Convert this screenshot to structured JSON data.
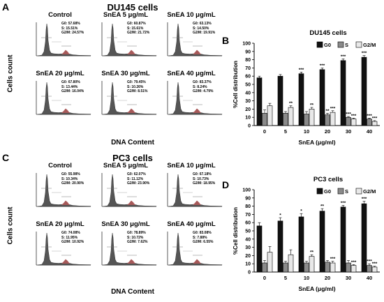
{
  "colors": {
    "g0": "#111111",
    "s": "#8a8a8a",
    "g2m": "#e8e8e8",
    "hist_fill": "#555555",
    "hist_red": "#b55a5a"
  },
  "icon_names": [
    "histogram-plot",
    "bar-chart"
  ],
  "panel_A": {
    "letter": "A",
    "title": "DU145 cells",
    "y_label": "Cells count",
    "x_label": "DNA Content",
    "cells": [
      {
        "label": "Control",
        "g0": "G0: 57.68%",
        "s": "S: 15.51%",
        "g2m": "G2/M: 24.57%"
      },
      {
        "label": "SnEA 5 μg/mL",
        "g0": "G0: 60.87%",
        "s": "S: 15.61%",
        "g2m": "G2/M: 21.72%"
      },
      {
        "label": "SnEA 10 μg/mL",
        "g0": "G0: 63.13%",
        "s": "S: 14.50%",
        "g2m": "G2/M: 19.91%"
      },
      {
        "label": "SnEA 20 μg/mL",
        "g0": "G0: 67.80%",
        "s": "S: 13.44%",
        "g2m": "G2/M: 16.04%"
      },
      {
        "label": "SnEA 30 μg/mL",
        "g0": "G0: 79.45%",
        "s": "S: 10.26%",
        "g2m": "G2/M: 8.51%"
      },
      {
        "label": "SnEA 40 μg/mL",
        "g0": "G0: 83.37%",
        "s": "S: 8.24%",
        "g2m": "G2/M: 4.79%"
      }
    ]
  },
  "panel_C": {
    "letter": "C",
    "title": "PC3 cells",
    "y_label": "Cells count",
    "x_label": "DNA Content",
    "cells": [
      {
        "label": "Control",
        "g0": "G0: 55.98%",
        "s": "S: 10.34%",
        "g2m": "G2/M: 20.90%"
      },
      {
        "label": "SnEA 5 μg/mL",
        "g0": "G0: 62.07%",
        "s": "S: 11.12%",
        "g2m": "G2/M: 23.90%"
      },
      {
        "label": "SnEA 10 μg/mL",
        "g0": "G0: 67.18%",
        "s": "S: 10.73%",
        "g2m": "G2/M: 18.95%"
      },
      {
        "label": "SnEA 20 μg/mL",
        "g0": "G0: 74.08%",
        "s": "S: 11.95%",
        "g2m": "G2/M: 10.92%"
      },
      {
        "label": "SnEA 30 μg/mL",
        "g0": "G0: 78.89%",
        "s": "S: 10.72%",
        "g2m": "G2/M: 7.62%"
      },
      {
        "label": "SnEA 40 μg/mL",
        "g0": "G0: 83.08%",
        "s": "S: 7.88%",
        "g2m": "G2/M: 6.55%"
      }
    ]
  },
  "chart_data": [
    {
      "id": "B",
      "letter": "B",
      "type": "bar",
      "title": "DU145 cells",
      "xlabel": "SnEA (μg/ml)",
      "ylabel": "%Cell distribution",
      "ylim": [
        0,
        100
      ],
      "yticks": [
        0,
        10,
        20,
        30,
        40,
        50,
        60,
        70,
        80,
        90,
        100
      ],
      "categories": [
        "0",
        "5",
        "10",
        "20",
        "30",
        "40"
      ],
      "legend_position": "top-right",
      "series": [
        {
          "name": "G0",
          "values": [
            58,
            60,
            63,
            68,
            79,
            83
          ],
          "errors": [
            2,
            2,
            2,
            2,
            2,
            2
          ],
          "sig": [
            "",
            "",
            "***",
            "***",
            "***",
            "***"
          ]
        },
        {
          "name": "S",
          "values": [
            15,
            15,
            14,
            13,
            10,
            8
          ],
          "errors": [
            4,
            2,
            3,
            2,
            1,
            1
          ],
          "sig": [
            "",
            "",
            "",
            "**",
            "***",
            "***"
          ]
        },
        {
          "name": "G2/M",
          "values": [
            24,
            22,
            20,
            16,
            8,
            5
          ],
          "errors": [
            3,
            2,
            2,
            2,
            1,
            1
          ],
          "sig": [
            "",
            "**",
            "**",
            "***",
            "***",
            "***"
          ]
        }
      ]
    },
    {
      "id": "D",
      "letter": "D",
      "type": "bar",
      "title": "PC3 cells",
      "xlabel": "SnEA (μg/ml)",
      "ylabel": "%Cell distribution",
      "ylim": [
        0,
        100
      ],
      "yticks": [
        0,
        10,
        20,
        30,
        40,
        50,
        60,
        70,
        80,
        90,
        100
      ],
      "categories": [
        "0",
        "5",
        "10",
        "20",
        "30",
        "40"
      ],
      "legend_position": "top-right",
      "series": [
        {
          "name": "G0",
          "values": [
            56,
            62,
            67,
            74,
            79,
            83
          ],
          "errors": [
            4,
            4,
            4,
            3,
            2,
            3
          ],
          "sig": [
            "",
            "*",
            "*",
            "**",
            "***",
            "***"
          ]
        },
        {
          "name": "S",
          "values": [
            11,
            11,
            11,
            12,
            11,
            8
          ],
          "errors": [
            3,
            2,
            2,
            2,
            3,
            2
          ],
          "sig": [
            "",
            "",
            "",
            "",
            "",
            "***"
          ]
        },
        {
          "name": "G2/M",
          "values": [
            24,
            21,
            19,
            11,
            8,
            6
          ],
          "errors": [
            7,
            6,
            2,
            2,
            1,
            1
          ],
          "sig": [
            "",
            "",
            "**",
            "***",
            "***",
            "***"
          ]
        }
      ]
    }
  ]
}
